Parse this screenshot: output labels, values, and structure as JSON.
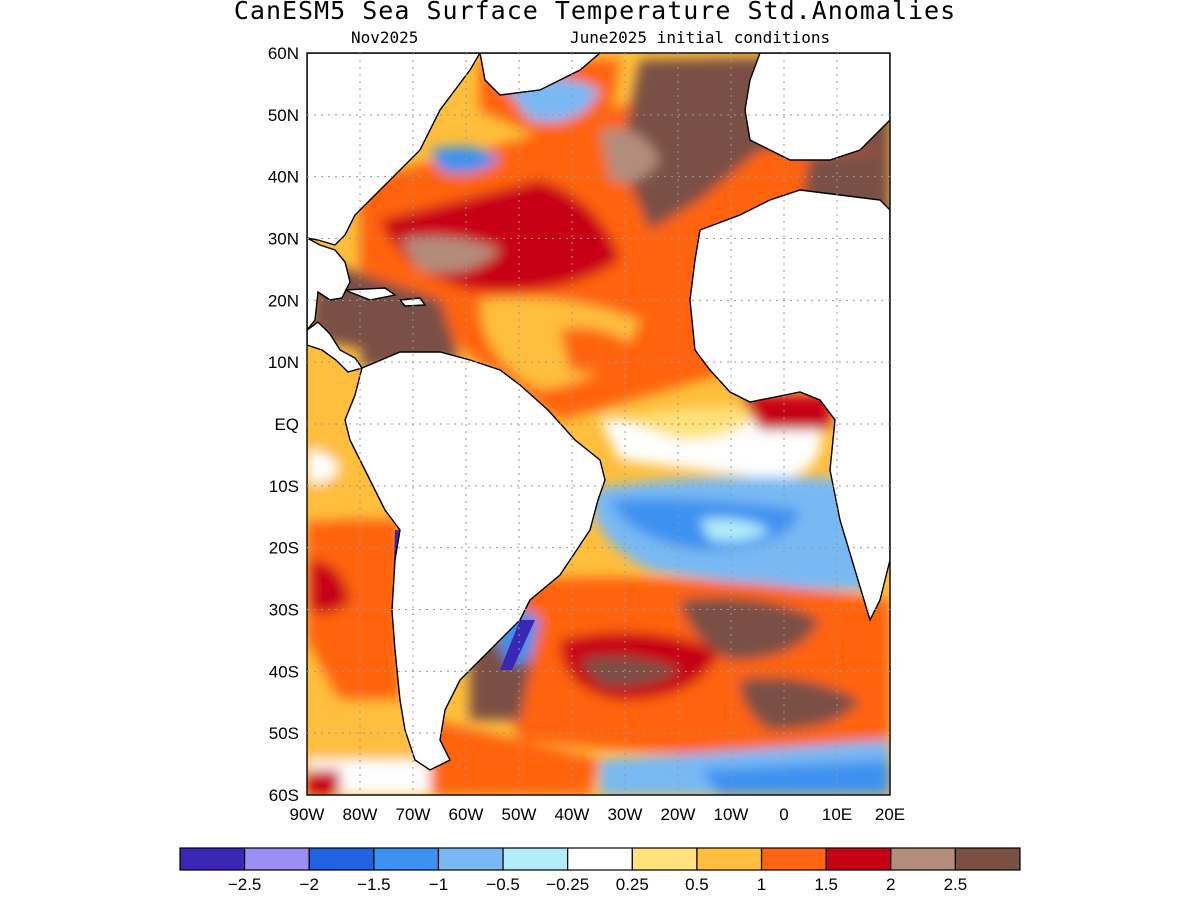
{
  "title": "CanESM5 Sea Surface Temperature Std.Anomalies",
  "subtitle_left": "Nov2025",
  "subtitle_right": "June2025 initial conditions",
  "map": {
    "lon_range": [
      -90,
      20
    ],
    "lat_range": [
      -60,
      60
    ],
    "lat_ticks": [
      "60N",
      "50N",
      "40N",
      "30N",
      "20N",
      "10N",
      "EQ",
      "10S",
      "20S",
      "30S",
      "40S",
      "50S",
      "60S"
    ],
    "lon_ticks": [
      "90W",
      "80W",
      "70W",
      "60W",
      "50W",
      "40W",
      "30W",
      "20W",
      "10W",
      "0",
      "10E",
      "20E"
    ],
    "grid": true
  },
  "colorbar": {
    "colors": [
      "#3a28b4",
      "#9c8ef4",
      "#1f62e2",
      "#3d91f0",
      "#78b9f4",
      "#b2eefa",
      "#ffffff",
      "#ffe27c",
      "#ffbe3c",
      "#ff6410",
      "#c80014",
      "#b48c7c",
      "#7a5044"
    ],
    "labels": [
      "-2.5",
      "-2",
      "-1.5",
      "-1",
      "-0.5",
      "-0.25",
      "0.25",
      "0.5",
      "1",
      "1.5",
      "2",
      "2.5"
    ]
  }
}
